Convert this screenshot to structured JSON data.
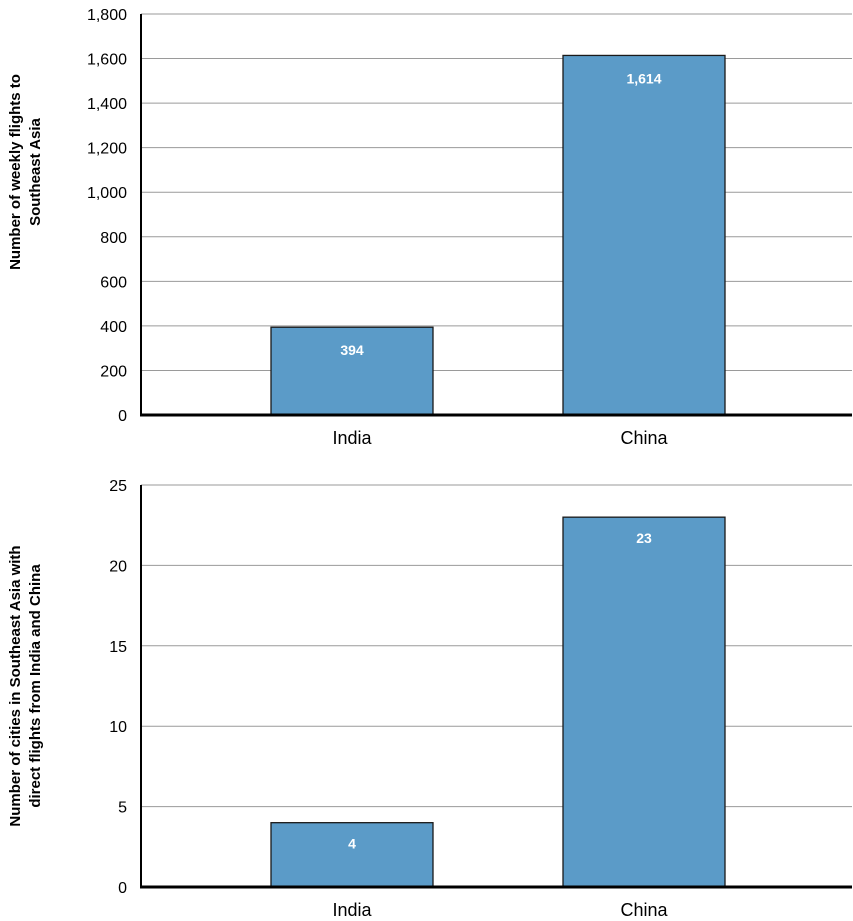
{
  "chart_data": [
    {
      "type": "bar",
      "categories": [
        "India",
        "China"
      ],
      "values": [
        394,
        1614
      ],
      "data_labels": [
        "394",
        "1,614"
      ],
      "ylabel_lines": [
        "Number of weekly flights to",
        "Southeast Asia"
      ],
      "ylim": [
        0,
        1800
      ],
      "yticks": [
        0,
        200,
        400,
        600,
        800,
        1000,
        1200,
        1400,
        1600,
        1800
      ],
      "ytick_labels": [
        "0",
        "200",
        "400",
        "600",
        "800",
        "1,000",
        "1,200",
        "1,400",
        "1,600",
        "1,800"
      ],
      "grid": true,
      "bar_color": "#5b9bc8"
    },
    {
      "type": "bar",
      "categories": [
        "India",
        "China"
      ],
      "values": [
        4,
        23
      ],
      "data_labels": [
        "4",
        "23"
      ],
      "ylabel_lines": [
        "Number of cities in Southeast Asia with",
        "direct flights from India and China"
      ],
      "ylim": [
        0,
        25
      ],
      "yticks": [
        0,
        5,
        10,
        15,
        20,
        25
      ],
      "ytick_labels": [
        "0",
        "5",
        "10",
        "15",
        "20",
        "25"
      ],
      "grid": true,
      "bar_color": "#5b9bc8"
    }
  ]
}
